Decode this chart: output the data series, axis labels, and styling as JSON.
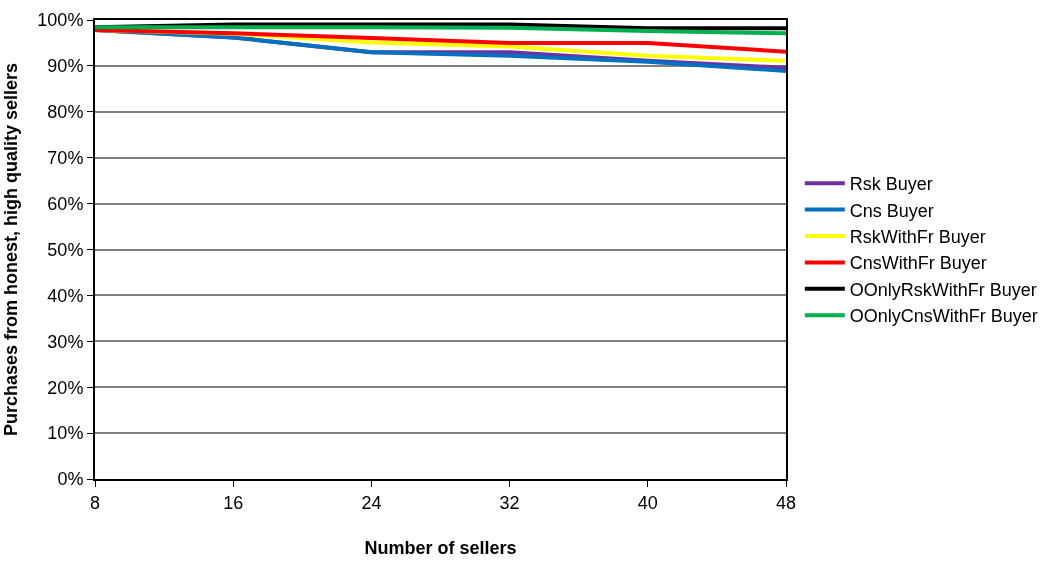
{
  "chart_data": {
    "type": "line",
    "xlabel": "Number of sellers",
    "ylabel": "Purchases from honest, high quality sellers",
    "x": [
      8,
      16,
      24,
      32,
      40,
      48
    ],
    "xlim": [
      8,
      48
    ],
    "xticks": [
      8,
      16,
      24,
      32,
      40,
      48
    ],
    "ylim": [
      0,
      1
    ],
    "yticks": [
      {
        "value": 0,
        "label": "0%"
      },
      {
        "value": 0.1,
        "label": "10%"
      },
      {
        "value": 0.2,
        "label": "20%"
      },
      {
        "value": 0.3,
        "label": "30%"
      },
      {
        "value": 0.4,
        "label": "40%"
      },
      {
        "value": 0.5,
        "label": "50%"
      },
      {
        "value": 0.6,
        "label": "60%"
      },
      {
        "value": 0.7,
        "label": "70%"
      },
      {
        "value": 0.8,
        "label": "80%"
      },
      {
        "value": 0.9,
        "label": "90%"
      },
      {
        "value": 1,
        "label": "100%"
      }
    ],
    "grid": "y",
    "legend": "right",
    "marker": "none",
    "line_style": "solid",
    "series": [
      {
        "name": "Rsk Buyer",
        "color": "#7030a0",
        "values": [
          0.978,
          0.962,
          0.93,
          0.93,
          0.911,
          0.896
        ]
      },
      {
        "name": "Cns Buyer",
        "color": "#0070c0",
        "values": [
          0.978,
          0.962,
          0.93,
          0.922,
          0.909,
          0.889
        ]
      },
      {
        "name": "RskWithFr Buyer",
        "color": "#ffff00",
        "values": [
          0.978,
          0.97,
          0.951,
          0.942,
          0.922,
          0.911
        ]
      },
      {
        "name": "CnsWithFr Buyer",
        "color": "#ff0000",
        "values": [
          0.978,
          0.971,
          0.961,
          0.95,
          0.95,
          0.931
        ]
      },
      {
        "name": "OOnlyRskWithFr Buyer",
        "color": "#000000",
        "values": [
          0.984,
          0.99,
          0.99,
          0.99,
          0.982,
          0.982
        ]
      },
      {
        "name": "OOnlyCnsWithFr Buyer",
        "color": "#00b050",
        "values": [
          0.984,
          0.984,
          0.984,
          0.983,
          0.976,
          0.971
        ]
      }
    ]
  }
}
